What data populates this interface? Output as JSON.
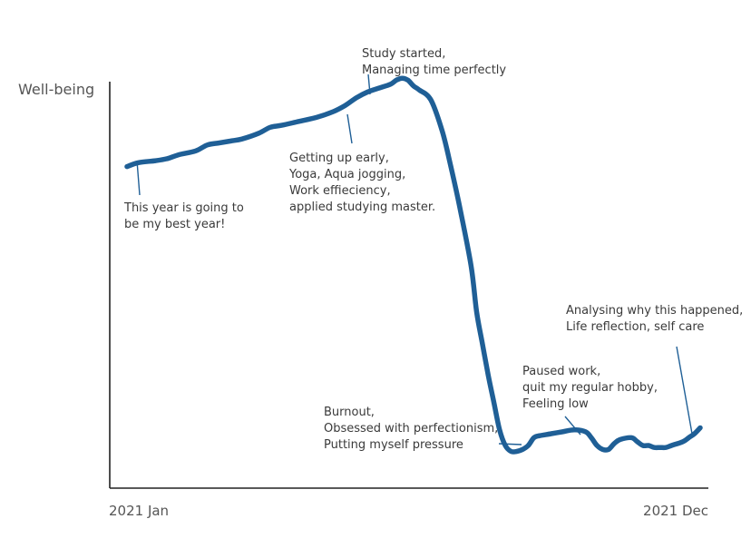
{
  "chart_data": {
    "type": "line",
    "title": "",
    "ylabel": "Well-being",
    "xlabel": "",
    "x_tick_labels": [
      "2021 Jan",
      "2021 Dec"
    ],
    "xlim": [
      0,
      100
    ],
    "ylim": [
      0,
      100
    ],
    "grid": false,
    "series": [
      {
        "name": "Well-being",
        "color": "#1f5f96",
        "x": [
          0,
          2,
          5,
          7,
          9,
          12,
          14,
          16,
          18,
          20,
          23,
          25,
          27,
          30,
          33,
          36,
          38,
          40,
          42,
          44,
          46,
          47,
          48,
          49,
          50,
          51,
          53,
          55,
          56.5,
          58,
          60,
          61,
          62,
          63,
          64,
          65,
          66,
          67,
          68,
          69,
          70,
          71,
          72,
          74,
          76,
          78,
          80,
          81,
          82,
          83,
          84,
          85,
          86,
          88,
          89,
          90,
          91,
          92,
          93,
          94,
          95,
          97,
          98,
          99,
          100
        ],
        "y": [
          80,
          81,
          81.5,
          82,
          83,
          84,
          85.5,
          86,
          86.5,
          87,
          88.5,
          90,
          90.5,
          91.5,
          92.5,
          94,
          95.5,
          97.5,
          99,
          100,
          101,
          102,
          102.5,
          102,
          100.5,
          99.5,
          97,
          89,
          80,
          70,
          55,
          43,
          35,
          27,
          20,
          13,
          9,
          7.5,
          7.5,
          8,
          9,
          11,
          11.5,
          12,
          12.5,
          13,
          12.5,
          11,
          9,
          8,
          8,
          9.5,
          10.5,
          11,
          10,
          9,
          9,
          8.5,
          8.5,
          8.5,
          9,
          10,
          11,
          12,
          13.5
        ]
      }
    ],
    "annotations": [
      {
        "lines": [
          "This year is going to",
          "be my best year!"
        ],
        "x": 2,
        "y": 81
      },
      {
        "lines": [
          "Getting up early,",
          "Yoga, Aqua jogging,",
          "Work effieciency,",
          "applied studying master."
        ],
        "x": 38,
        "y": 95.5
      },
      {
        "lines": [
          "Study started,",
          "Managing time perfectly"
        ],
        "x": 48,
        "y": 102.5
      },
      {
        "lines": [
          "Burnout,",
          "Obsessed with perfectionism,",
          "Putting myself pressure"
        ],
        "x": 67,
        "y": 7.5
      },
      {
        "lines": [
          "Paused work,",
          "quit my regular hobby,",
          "Feeling low"
        ],
        "x": 74,
        "y": 12
      },
      {
        "lines": [
          "Analysing why this happened,",
          "Life reflection, self care"
        ],
        "x": 98,
        "y": 12
      }
    ]
  }
}
